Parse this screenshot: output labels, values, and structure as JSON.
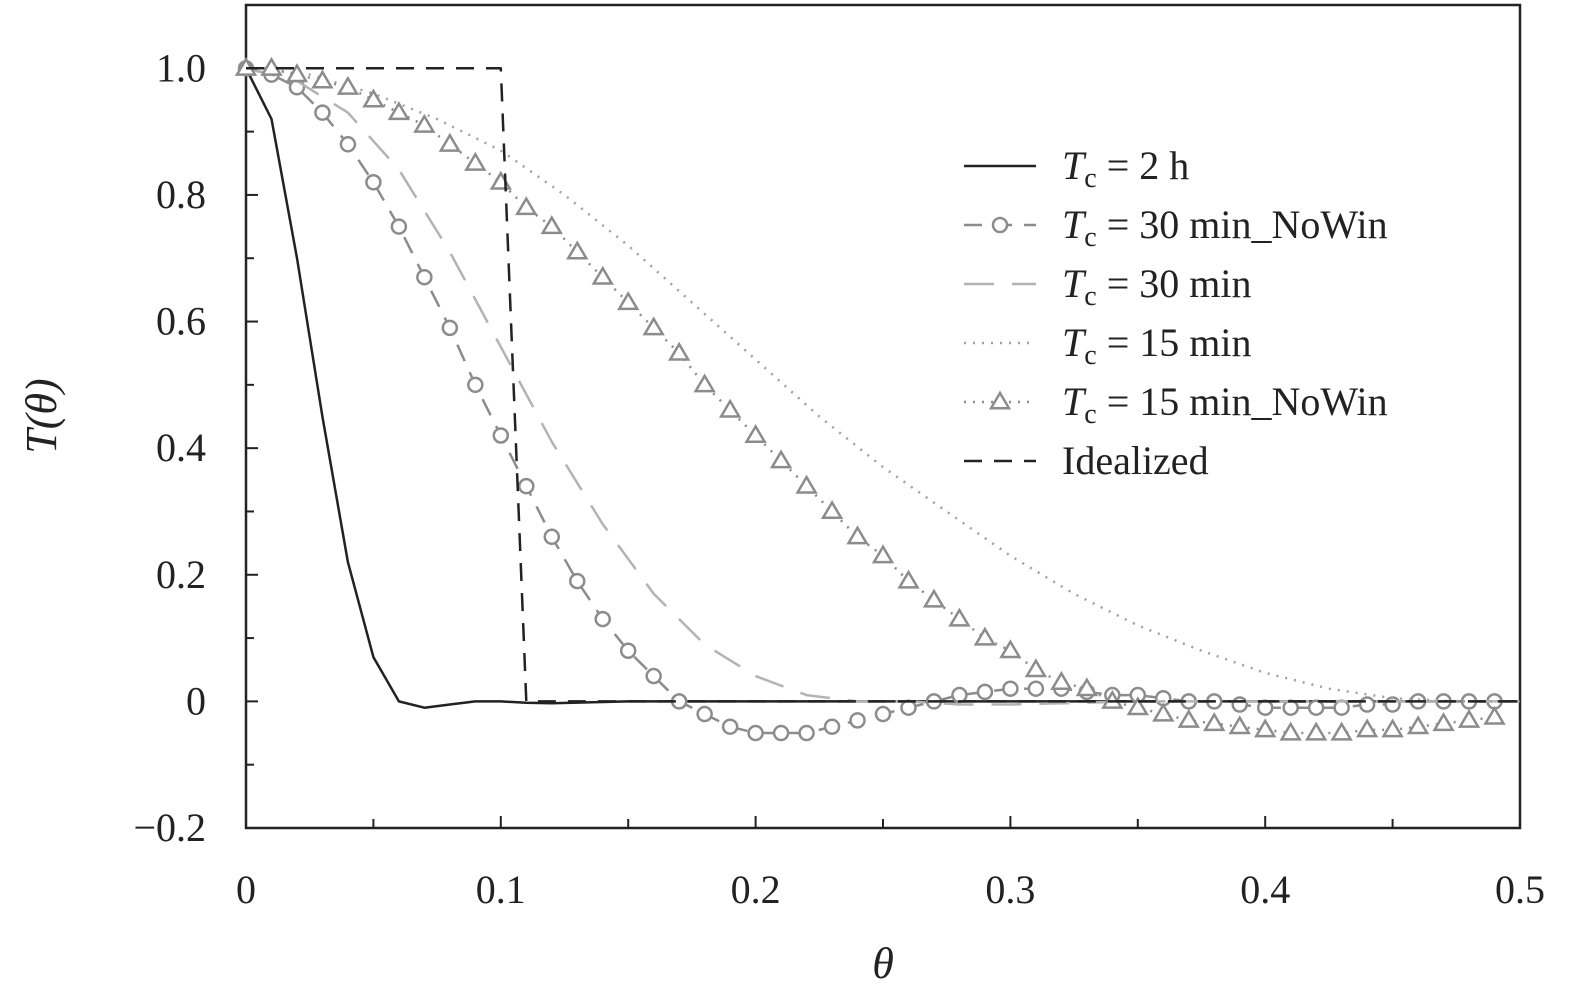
{
  "chart_data": {
    "type": "line",
    "title": "",
    "xlabel": "θ",
    "ylabel": "T(θ)",
    "xlim": [
      0,
      0.5
    ],
    "ylim": [
      -0.2,
      1.1
    ],
    "xticks": [
      0,
      0.1,
      0.2,
      0.3,
      0.4,
      0.5
    ],
    "xtick_labels": [
      "0",
      "0.1",
      "0.2",
      "0.3",
      "0.4",
      "0.5"
    ],
    "yticks": [
      -0.2,
      0,
      0.2,
      0.4,
      0.6,
      0.8,
      1.0
    ],
    "ytick_labels": [
      "−0.2",
      "0",
      "0.2",
      "0.4",
      "0.6",
      "0.8",
      "1.0"
    ],
    "grid": false,
    "legend_position": "right",
    "series": [
      {
        "name": "T_c = 2 h",
        "label_main": "T",
        "label_sub": "c",
        "label_rest": " = 2 h",
        "color": "#222222",
        "dash": "solid",
        "marker": "none",
        "x": [
          0,
          0.01,
          0.02,
          0.03,
          0.04,
          0.05,
          0.06,
          0.07,
          0.08,
          0.09,
          0.1,
          0.11,
          0.12,
          0.15,
          0.2,
          0.3,
          0.4,
          0.5
        ],
        "y": [
          1.0,
          0.92,
          0.7,
          0.45,
          0.22,
          0.07,
          0.0,
          -0.01,
          -0.005,
          0.0,
          0.0,
          -0.002,
          -0.003,
          0.0,
          0.0,
          0.0,
          0.0,
          0.0
        ]
      },
      {
        "name": "T_c = 30 min_NoWin",
        "label_main": "T",
        "label_sub": "c",
        "label_rest": " = 30 min_NoWin",
        "color": "#8c8c8c",
        "dash": "dashed",
        "marker": "circle",
        "x": [
          0,
          0.01,
          0.02,
          0.03,
          0.04,
          0.05,
          0.06,
          0.07,
          0.08,
          0.09,
          0.1,
          0.11,
          0.12,
          0.13,
          0.14,
          0.15,
          0.16,
          0.17,
          0.18,
          0.19,
          0.2,
          0.21,
          0.22,
          0.23,
          0.24,
          0.25,
          0.26,
          0.27,
          0.28,
          0.29,
          0.3,
          0.31,
          0.32,
          0.33,
          0.34,
          0.35,
          0.36,
          0.37,
          0.38,
          0.39,
          0.4,
          0.41,
          0.42,
          0.43,
          0.44,
          0.45,
          0.46,
          0.47,
          0.48,
          0.49
        ],
        "y": [
          1.0,
          0.99,
          0.97,
          0.93,
          0.88,
          0.82,
          0.75,
          0.67,
          0.59,
          0.5,
          0.42,
          0.34,
          0.26,
          0.19,
          0.13,
          0.08,
          0.04,
          0.0,
          -0.02,
          -0.04,
          -0.05,
          -0.05,
          -0.05,
          -0.04,
          -0.03,
          -0.02,
          -0.01,
          0.0,
          0.01,
          0.015,
          0.02,
          0.02,
          0.02,
          0.015,
          0.01,
          0.01,
          0.005,
          0.0,
          0.0,
          -0.005,
          -0.01,
          -0.01,
          -0.01,
          -0.01,
          -0.005,
          -0.005,
          0.0,
          0.0,
          0.0,
          0.0
        ]
      },
      {
        "name": "T_c = 30 min",
        "label_main": "T",
        "label_sub": "c",
        "label_rest": " = 30 min",
        "color": "#b3b3b3",
        "dash": "longdash",
        "marker": "none",
        "x": [
          0,
          0.02,
          0.04,
          0.06,
          0.08,
          0.1,
          0.12,
          0.14,
          0.16,
          0.18,
          0.2,
          0.22,
          0.24,
          0.26,
          0.28,
          0.3,
          0.35,
          0.4,
          0.45,
          0.5
        ],
        "y": [
          1.0,
          0.98,
          0.93,
          0.84,
          0.71,
          0.56,
          0.41,
          0.28,
          0.17,
          0.09,
          0.04,
          0.01,
          0.0,
          0.0,
          -0.005,
          -0.005,
          0.0,
          0.0,
          0.0,
          0.0
        ]
      },
      {
        "name": "T_c = 15 min",
        "label_main": "T",
        "label_sub": "c",
        "label_rest": " = 15 min",
        "color": "#a0a0a0",
        "dash": "dotted",
        "marker": "none",
        "x": [
          0,
          0.025,
          0.05,
          0.075,
          0.1,
          0.125,
          0.15,
          0.175,
          0.2,
          0.225,
          0.25,
          0.275,
          0.3,
          0.325,
          0.35,
          0.375,
          0.4,
          0.425,
          0.45,
          0.475,
          0.5
        ],
        "y": [
          1.0,
          0.99,
          0.96,
          0.92,
          0.87,
          0.8,
          0.72,
          0.63,
          0.54,
          0.45,
          0.37,
          0.3,
          0.23,
          0.17,
          0.12,
          0.08,
          0.045,
          0.02,
          0.005,
          0.0,
          0.0
        ]
      },
      {
        "name": "T_c = 15 min_NoWin",
        "label_main": "T",
        "label_sub": "c",
        "label_rest": " = 15 min_NoWin",
        "color": "#8c8c8c",
        "dash": "dotted",
        "marker": "triangle",
        "x": [
          0,
          0.01,
          0.02,
          0.03,
          0.04,
          0.05,
          0.06,
          0.07,
          0.08,
          0.09,
          0.1,
          0.11,
          0.12,
          0.13,
          0.14,
          0.15,
          0.16,
          0.17,
          0.18,
          0.19,
          0.2,
          0.21,
          0.22,
          0.23,
          0.24,
          0.25,
          0.26,
          0.27,
          0.28,
          0.29,
          0.3,
          0.31,
          0.32,
          0.33,
          0.34,
          0.35,
          0.36,
          0.37,
          0.38,
          0.39,
          0.4,
          0.41,
          0.42,
          0.43,
          0.44,
          0.45,
          0.46,
          0.47,
          0.48,
          0.49
        ],
        "y": [
          1.0,
          1.0,
          0.99,
          0.98,
          0.97,
          0.95,
          0.93,
          0.91,
          0.88,
          0.85,
          0.82,
          0.78,
          0.75,
          0.71,
          0.67,
          0.63,
          0.59,
          0.55,
          0.5,
          0.46,
          0.42,
          0.38,
          0.34,
          0.3,
          0.26,
          0.23,
          0.19,
          0.16,
          0.13,
          0.1,
          0.08,
          0.05,
          0.03,
          0.02,
          0.0,
          -0.01,
          -0.02,
          -0.03,
          -0.035,
          -0.04,
          -0.045,
          -0.05,
          -0.05,
          -0.05,
          -0.045,
          -0.045,
          -0.04,
          -0.035,
          -0.03,
          -0.025
        ]
      },
      {
        "name": "Idealized",
        "label_main": "",
        "label_sub": "",
        "label_rest": "Idealized",
        "color": "#222222",
        "dash": "dashed",
        "marker": "none",
        "x": [
          0,
          0.1,
          0.11,
          0.5
        ],
        "y": [
          1.0,
          1.0,
          0.0,
          0.0
        ]
      }
    ]
  }
}
